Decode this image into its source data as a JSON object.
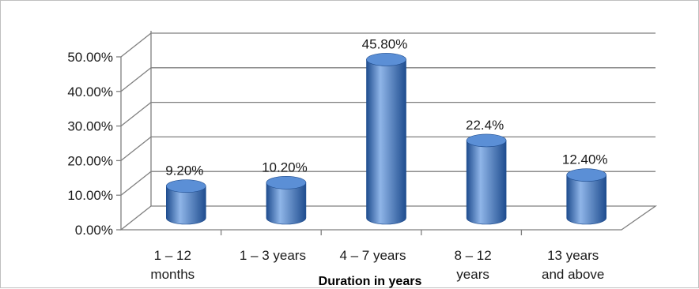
{
  "chart_data": {
    "type": "bar",
    "categories": [
      [
        "1 – 12",
        "months"
      ],
      [
        "1 – 3 years"
      ],
      [
        "4 – 7 years"
      ],
      [
        "8 – 12",
        "years"
      ],
      [
        "13 years",
        "and above"
      ]
    ],
    "values": [
      9.2,
      10.2,
      45.8,
      22.4,
      12.4
    ],
    "data_labels": [
      "9.20%",
      "10.20%",
      "45.80%",
      "22.4%",
      "12.40%"
    ],
    "title": "",
    "xlabel": "Duration in years",
    "ylabel": "",
    "ylim": [
      0,
      50
    ],
    "yticks": [
      "0.00%",
      "10.00%",
      "20.00%",
      "30.00%",
      "40.00%",
      "50.00%"
    ],
    "grid": true,
    "legend": "none",
    "colors": {
      "bar_side": "#3f74bd",
      "bar_light": "#8fb5e8",
      "bar_dark": "#1f4d8f",
      "bar_top": "#5b8fd6",
      "gridline": "#7f7f7f"
    }
  }
}
